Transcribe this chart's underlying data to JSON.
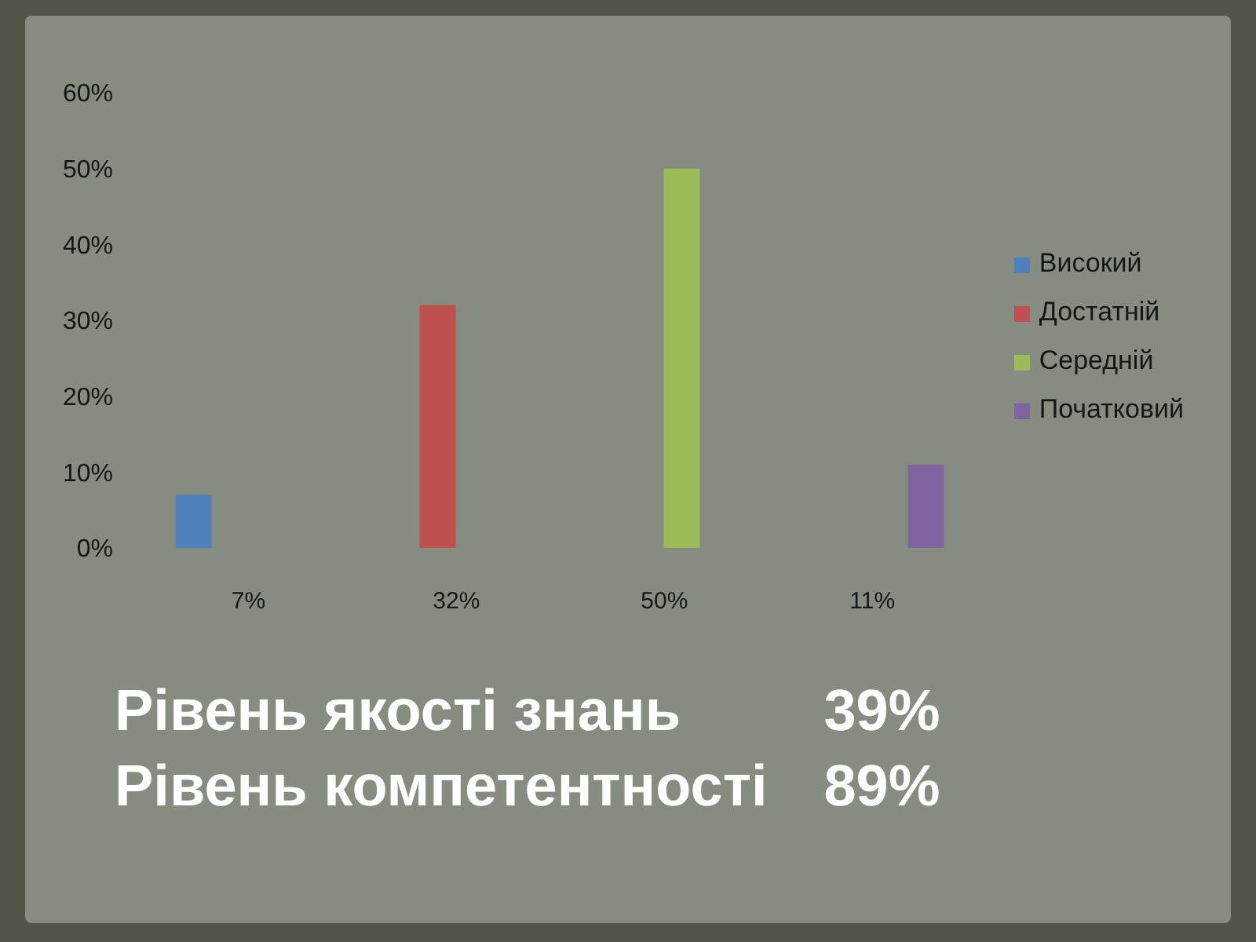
{
  "chart_data": {
    "type": "bar",
    "categories": [
      "7%",
      "32%",
      "50%",
      "11%"
    ],
    "series": [
      {
        "name": "Високий",
        "color": "#4f81bd",
        "values": [
          7,
          null,
          null,
          null
        ]
      },
      {
        "name": "Достатній",
        "color": "#c0504d",
        "values": [
          null,
          32,
          null,
          null
        ]
      },
      {
        "name": "Середній",
        "color": "#9bbb59",
        "values": [
          null,
          null,
          50,
          null
        ]
      },
      {
        "name": "Початковий",
        "color": "#8064a2",
        "values": [
          null,
          null,
          null,
          11
        ]
      }
    ],
    "ylim": [
      0,
      60
    ],
    "yticks": [
      {
        "value": 0,
        "label": "0%"
      },
      {
        "value": 10,
        "label": "10%"
      },
      {
        "value": 20,
        "label": "20%"
      },
      {
        "value": 30,
        "label": "30%"
      },
      {
        "value": 40,
        "label": "40%"
      },
      {
        "value": 50,
        "label": "50%"
      },
      {
        "value": 60,
        "label": "60%"
      }
    ],
    "legend": "right",
    "annotations": [
      "Рівень якості знань 39%",
      "Рівень компетентності 89%"
    ]
  }
}
